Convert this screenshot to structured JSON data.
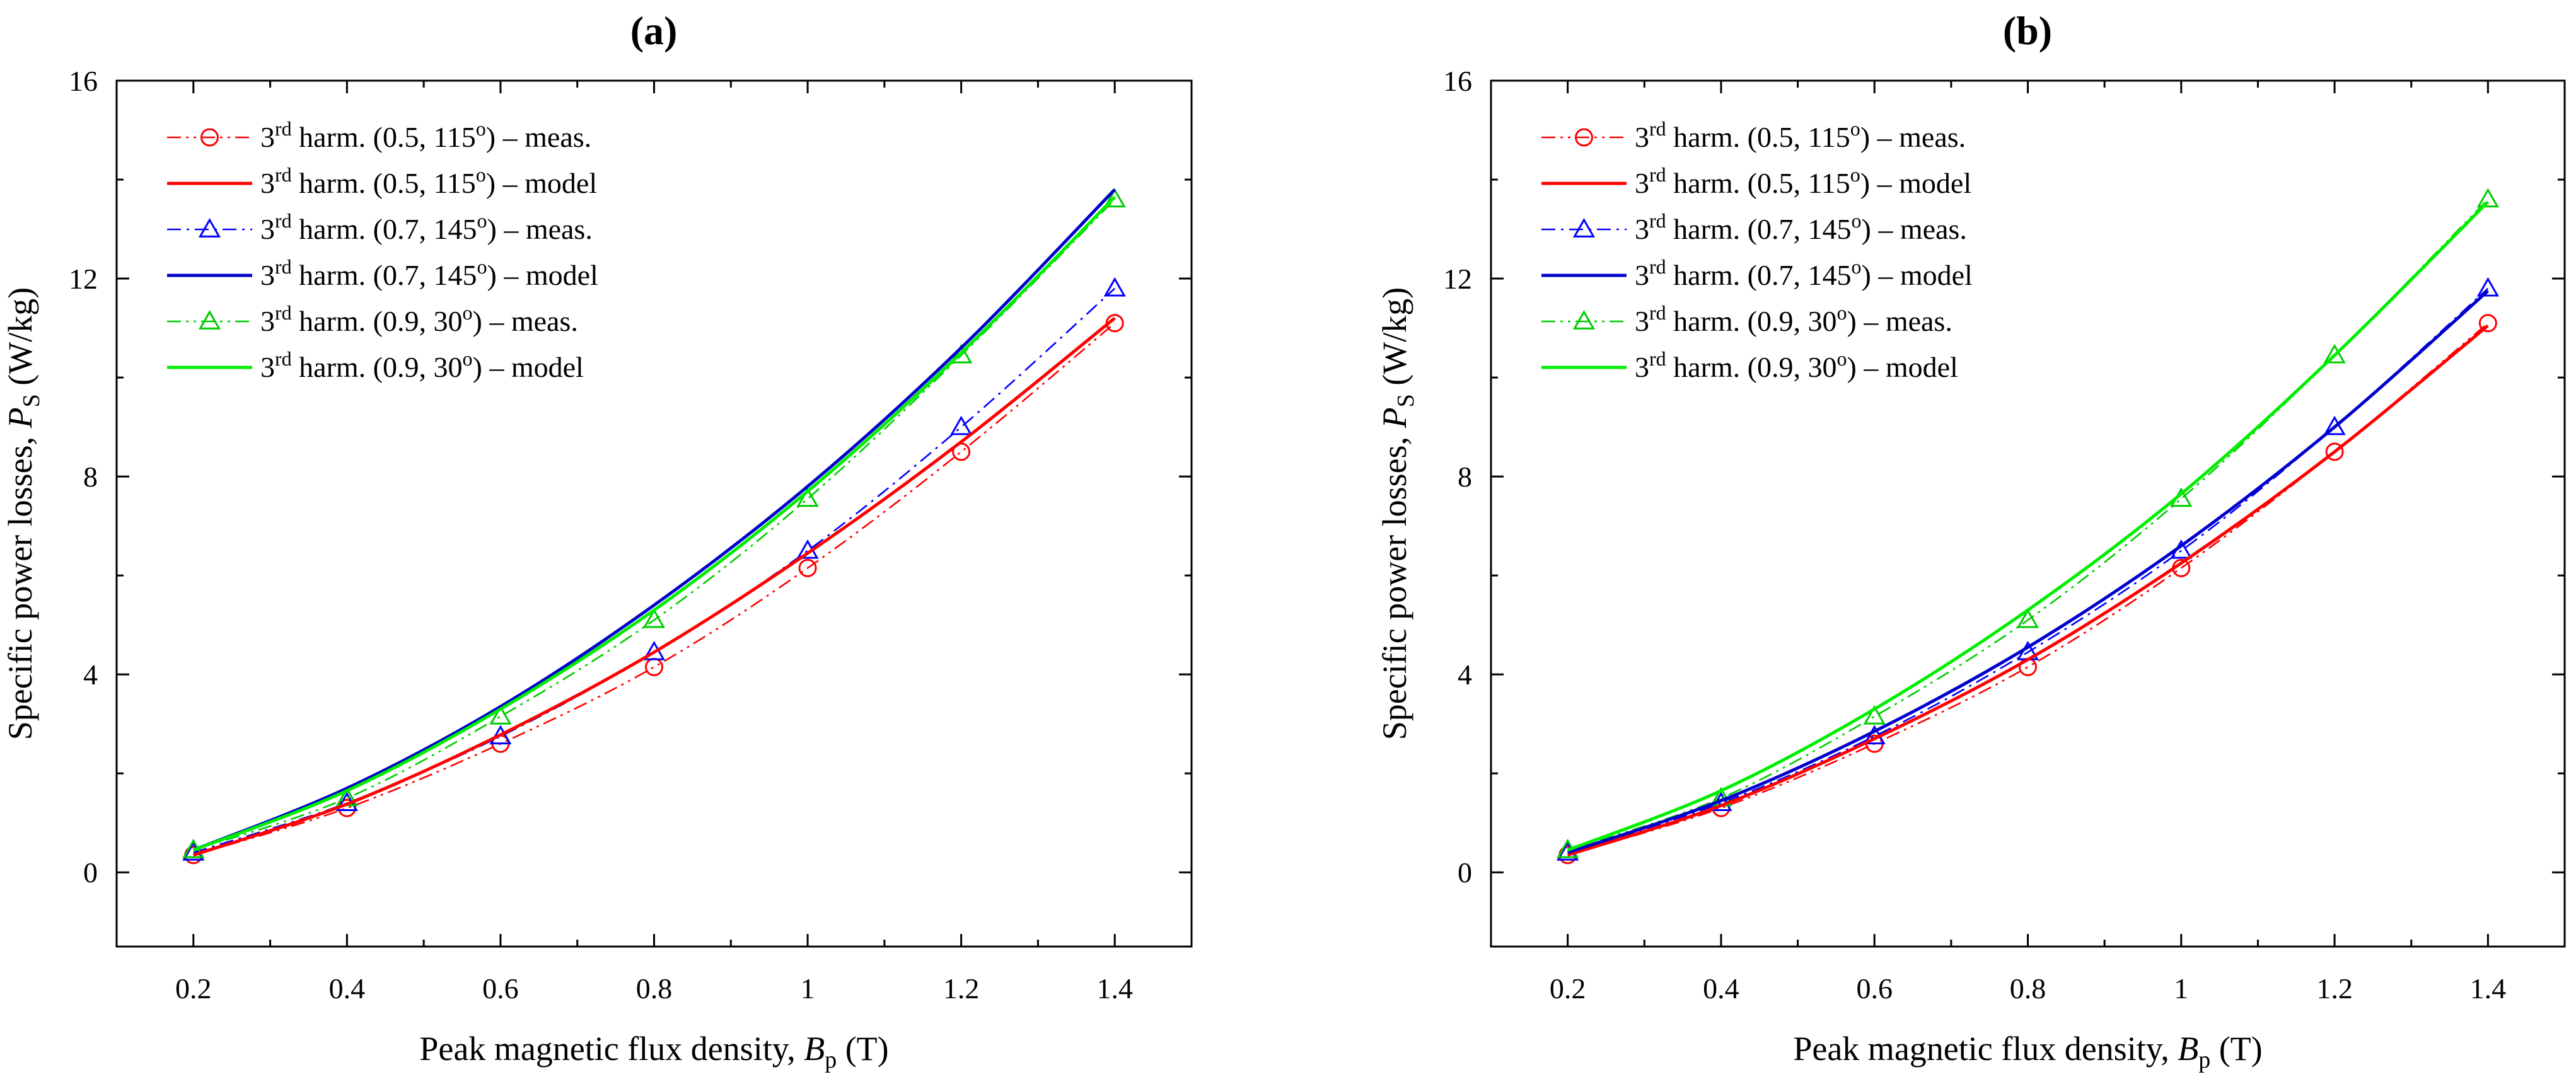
{
  "chart_data": [
    {
      "type": "line",
      "panel": "a",
      "title_label": "a",
      "title_open": "(",
      "title_close": ")",
      "xlabel": "Peak magnetic flux density, ",
      "xvar": "B",
      "xsub": "p",
      "xunit": " (T)",
      "ylabel": "Specific power losses, ",
      "yvar": "P",
      "ysub": "S",
      "yunit": " (W/kg)",
      "xlim": [
        0.1,
        1.5
      ],
      "ylim": [
        -1.5,
        16
      ],
      "xticks": [
        0.2,
        0.4,
        0.6,
        0.8,
        1,
        1.2,
        1.4
      ],
      "xtick_labels": [
        "0.2",
        "0.4",
        "0.6",
        "0.8",
        "1",
        "1.2",
        "1.4"
      ],
      "yticks": [
        0,
        4,
        8,
        12,
        16
      ],
      "ytick_labels": [
        "0",
        "4",
        "8",
        "12",
        "16"
      ],
      "x": [
        0.2,
        0.4,
        0.6,
        0.8,
        1.0,
        1.2,
        1.4
      ],
      "legend_position": "top-left",
      "series": [
        {
          "pre": "3",
          "sup": "rd",
          "mid": " harm. (0.5, 115",
          "deg": "o",
          "post": ") – meas.",
          "color": "#ff0000",
          "style": "dashdotdot",
          "marker": "circle",
          "values": [
            0.35,
            1.3,
            2.6,
            4.15,
            6.15,
            8.5,
            11.1
          ]
        },
        {
          "pre": "3",
          "sup": "rd",
          "mid": " harm. (0.5, 115",
          "deg": "o",
          "post": ") – model",
          "color": "#ff0000",
          "style": "solid",
          "marker": "none",
          "values": [
            0.35,
            1.38,
            2.78,
            4.45,
            6.45,
            8.7,
            11.2
          ]
        },
        {
          "pre": "3",
          "sup": "rd",
          "mid": " harm. (0.7, 145",
          "deg": "o",
          "post": ") – meas.",
          "color": "#0000ff",
          "style": "dashdot",
          "marker": "triangle",
          "values": [
            0.4,
            1.4,
            2.75,
            4.45,
            6.5,
            9.0,
            11.8
          ]
        },
        {
          "pre": "3",
          "sup": "rd",
          "mid": " harm. (0.7, 145",
          "deg": "o",
          "post": ") – model",
          "color": "#0000cc",
          "style": "solid",
          "marker": "none",
          "values": [
            0.45,
            1.7,
            3.35,
            5.4,
            7.8,
            10.6,
            13.8
          ]
        },
        {
          "pre": "3",
          "sup": "rd",
          "mid": " harm. (0.9, 30",
          "deg": "o",
          "post": ") – meas.",
          "color": "#00cc00",
          "style": "dashdotdot",
          "marker": "triangle",
          "values": [
            0.45,
            1.5,
            3.15,
            5.1,
            7.55,
            10.45,
            13.6
          ]
        },
        {
          "pre": "3",
          "sup": "rd",
          "mid": " harm. (0.9, 30",
          "deg": "o",
          "post": ") – model",
          "color": "#00ee00",
          "style": "solid",
          "marker": "none",
          "values": [
            0.45,
            1.65,
            3.3,
            5.3,
            7.7,
            10.5,
            13.65
          ]
        }
      ]
    },
    {
      "type": "line",
      "panel": "b",
      "title_label": "b",
      "title_open": "(",
      "title_close": ")",
      "xlabel": "Peak magnetic flux density, ",
      "xvar": "B",
      "xsub": "p",
      "xunit": " (T)",
      "ylabel": "Specific power losses, ",
      "yvar": "P",
      "ysub": "S",
      "yunit": " (W/kg)",
      "xlim": [
        0.1,
        1.5
      ],
      "ylim": [
        -1.5,
        16
      ],
      "xticks": [
        0.2,
        0.4,
        0.6,
        0.8,
        1,
        1.2,
        1.4
      ],
      "xtick_labels": [
        "0.2",
        "0.4",
        "0.6",
        "0.8",
        "1",
        "1.2",
        "1.4"
      ],
      "yticks": [
        0,
        4,
        8,
        12,
        16
      ],
      "ytick_labels": [
        "0",
        "4",
        "8",
        "12",
        "16"
      ],
      "x": [
        0.2,
        0.4,
        0.6,
        0.8,
        1.0,
        1.2,
        1.4
      ],
      "legend_position": "top-left",
      "series": [
        {
          "pre": "3",
          "sup": "rd",
          "mid": " harm. (0.5, 115",
          "deg": "o",
          "post": ") – meas.",
          "color": "#ff0000",
          "style": "dashdotdot",
          "marker": "circle",
          "values": [
            0.35,
            1.3,
            2.6,
            4.15,
            6.15,
            8.5,
            11.1
          ]
        },
        {
          "pre": "3",
          "sup": "rd",
          "mid": " harm. (0.5, 115",
          "deg": "o",
          "post": ") – model",
          "color": "#ff0000",
          "style": "solid",
          "marker": "none",
          "values": [
            0.35,
            1.35,
            2.7,
            4.3,
            6.25,
            8.5,
            11.05
          ]
        },
        {
          "pre": "3",
          "sup": "rd",
          "mid": " harm. (0.7, 145",
          "deg": "o",
          "post": ") – meas.",
          "color": "#0000ff",
          "style": "dashdot",
          "marker": "triangle",
          "values": [
            0.4,
            1.4,
            2.75,
            4.45,
            6.5,
            9.0,
            11.8
          ]
        },
        {
          "pre": "3",
          "sup": "rd",
          "mid": " harm. (0.7, 145",
          "deg": "o",
          "post": ") – model",
          "color": "#0000cc",
          "style": "solid",
          "marker": "none",
          "values": [
            0.4,
            1.45,
            2.85,
            4.55,
            6.6,
            9.0,
            11.75
          ]
        },
        {
          "pre": "3",
          "sup": "rd",
          "mid": " harm. (0.9, 30",
          "deg": "o",
          "post": ") – meas.",
          "color": "#00cc00",
          "style": "dashdotdot",
          "marker": "triangle",
          "values": [
            0.45,
            1.5,
            3.15,
            5.1,
            7.55,
            10.45,
            13.6
          ]
        },
        {
          "pre": "3",
          "sup": "rd",
          "mid": " harm. (0.9, 30",
          "deg": "o",
          "post": ") – model",
          "color": "#00ee00",
          "style": "solid",
          "marker": "none",
          "values": [
            0.45,
            1.65,
            3.3,
            5.3,
            7.65,
            10.45,
            13.55
          ]
        }
      ]
    }
  ]
}
